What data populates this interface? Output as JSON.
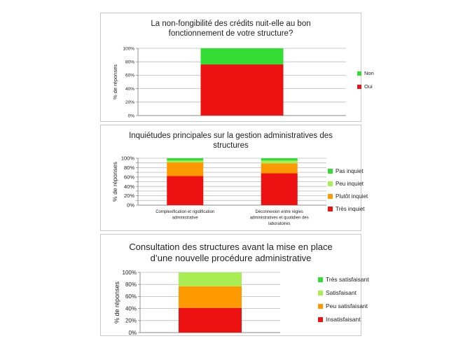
{
  "colors": {
    "non": "#33dd33",
    "oui": "#ee1111",
    "pas_inquiet": "#33dd33",
    "peu_inquiet": "#aaee55",
    "plutot_inquiet": "#ff9900",
    "tres_inquiet": "#ee1111",
    "tres_satisfaisant": "#33dd33",
    "satisfaisant": "#aaee55",
    "peu_satisfaisant": "#ff9900",
    "insatisfaisant": "#ee1111",
    "grid": "#bbbbbb"
  },
  "chart_data": [
    {
      "type": "bar",
      "stacked": true,
      "title_lines": [
        "La non-fongibilité des crédits nuit-elle au bon",
        "fonctionnement de votre structure?"
      ],
      "ylabel": "% de réponses",
      "ylim": [
        0,
        100
      ],
      "yticks": [
        "0%",
        "20%",
        "40%",
        "60%",
        "80%",
        "100%"
      ],
      "grid": true,
      "legend_position": "right",
      "categories": [
        ""
      ],
      "series": [
        {
          "name": "Oui",
          "values": [
            76
          ],
          "color_key": "oui"
        },
        {
          "name": "Non",
          "values": [
            24
          ],
          "color_key": "non"
        }
      ]
    },
    {
      "type": "bar",
      "stacked": true,
      "title_lines": [
        "Inquiétudes principales sur la gestion administratives des",
        "structures"
      ],
      "ylabel": "% de réponses",
      "ylim": [
        0,
        100
      ],
      "yticks": [
        "0%",
        "10%",
        "20%",
        "30%",
        "40%",
        "50%",
        "60%",
        "70%",
        "80%",
        "90%",
        "100%"
      ],
      "ytick_labels_shown": [
        "0%",
        "20%",
        "40%",
        "60%",
        "80%",
        "100%"
      ],
      "grid": true,
      "legend_position": "right",
      "categories": [
        [
          "Complexification et rigidification",
          "administrative"
        ],
        [
          "Déconnexion entre règles",
          "administratives et quotidien des",
          "laboratoires"
        ]
      ],
      "series": [
        {
          "name": "Très inquiet",
          "values": [
            62,
            68
          ],
          "color_key": "tres_inquiet"
        },
        {
          "name": "Plutôt inquiet",
          "values": [
            29,
            21
          ],
          "color_key": "plutot_inquiet"
        },
        {
          "name": "Peu inquiet",
          "values": [
            4,
            6
          ],
          "color_key": "peu_inquiet"
        },
        {
          "name": "Pas inquiet",
          "values": [
            5,
            5
          ],
          "color_key": "pas_inquiet"
        }
      ]
    },
    {
      "type": "bar",
      "stacked": true,
      "title_lines": [
        "Consultation des structures avant la mise en place",
        "d’une nouvelle procédure administrative"
      ],
      "ylabel": "% de réponses",
      "ylim": [
        0,
        100
      ],
      "yticks": [
        "0%",
        "20%",
        "40%",
        "60%",
        "80%",
        "100%"
      ],
      "grid": true,
      "legend_position": "right",
      "categories": [
        ""
      ],
      "series": [
        {
          "name": "Insatisfaisant",
          "values": [
            41
          ],
          "color_key": "insatisfaisant"
        },
        {
          "name": "Peu satisfaisant",
          "values": [
            36
          ],
          "color_key": "peu_satisfaisant"
        },
        {
          "name": "Satisfaisant",
          "values": [
            23
          ],
          "color_key": "satisfaisant"
        },
        {
          "name": "Très satisfaisant",
          "values": [
            0
          ],
          "color_key": "tres_satisfaisant"
        }
      ]
    }
  ]
}
